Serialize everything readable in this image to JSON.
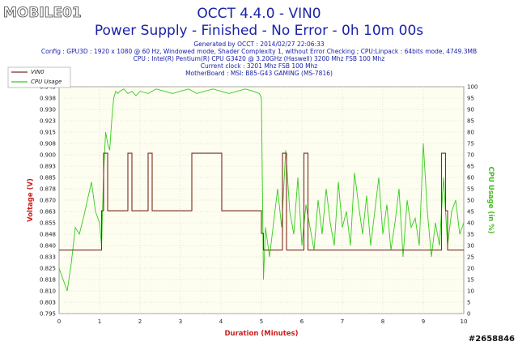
{
  "watermark": {
    "logo_text": "MOBILE01",
    "id_text": "#2658846"
  },
  "header": {
    "title": "OCCT 4.4.0 - VIN0",
    "subtitle": "Power Supply - Finished - No Error - 0h 10m 00s",
    "info_lines": [
      "Generated by OCCT : 2014/02/27 22:06:33",
      "Config : GPU3D : 1920 x 1080 @ 60 Hz, Windowed mode, Shader Complexity 1, without Error Checking ; CPU:Linpack : 64bits mode, 4749.3MB",
      "CPU : Intel(R) Pentium(R) CPU G3420 @ 3.20GHz (Haswell) 3200 Mhz FSB 100 Mhz",
      "Current clock : 3201 Mhz FSB 100 Mhz",
      "MotherBoard : MSI: B85-G43 GAMING (MS-7816)"
    ]
  },
  "colors": {
    "voltage_line": "#7b2e22",
    "cpu_line": "#33cc1a",
    "plot_bg": "#fdfdf0",
    "title": "#1a22a8",
    "axis_label": "#cc2020",
    "right_axis_label": "#44bb22",
    "grid": "#cccccc"
  },
  "chart_data": {
    "type": "line",
    "xlabel": "Duration (Minutes)",
    "ylabel": "Voltage (V)",
    "y2label": "CPU Usage (in %)",
    "xlim": [
      0,
      10
    ],
    "ylim": [
      0.795,
      0.945
    ],
    "y2lim": [
      0,
      100
    ],
    "x_ticks": [
      "0",
      "1",
      "2",
      "3",
      "4",
      "5",
      "6",
      "7",
      "8",
      "9",
      "10"
    ],
    "y_ticks": [
      "0.795",
      "0.803",
      "0.810",
      "0.818",
      "0.825",
      "0.833",
      "0.840",
      "0.848",
      "0.855",
      "0.863",
      "0.870",
      "0.878",
      "0.885",
      "0.893",
      "0.900",
      "0.908",
      "0.915",
      "0.923",
      "0.930",
      "0.938",
      "0.945"
    ],
    "y2_ticks": [
      "0",
      "5",
      "10",
      "15",
      "20",
      "25",
      "30",
      "35",
      "40",
      "45",
      "50",
      "55",
      "60",
      "65",
      "70",
      "75",
      "80",
      "85",
      "90",
      "95",
      "100"
    ],
    "grid": true,
    "legend": {
      "placement": "top-left",
      "entries": [
        "VIN0",
        "CPU Usage"
      ]
    },
    "series": [
      {
        "name": "VIN0",
        "axis": "left",
        "x": [
          0,
          1.05,
          1.05,
          1.1,
          1.1,
          1.2,
          1.2,
          1.7,
          1.7,
          1.8,
          1.8,
          2.2,
          2.2,
          2.3,
          2.3,
          3.28,
          3.28,
          4.02,
          4.02,
          5.0,
          5.0,
          5.05,
          5.05,
          5.52,
          5.52,
          5.62,
          5.62,
          6.05,
          6.05,
          6.15,
          6.15,
          9.45,
          9.45,
          9.55,
          9.55,
          9.6,
          9.6,
          10
        ],
        "y": [
          0.837,
          0.837,
          0.863,
          0.863,
          0.901,
          0.901,
          0.863,
          0.863,
          0.901,
          0.901,
          0.863,
          0.863,
          0.901,
          0.901,
          0.863,
          0.863,
          0.901,
          0.901,
          0.863,
          0.863,
          0.848,
          0.848,
          0.837,
          0.837,
          0.901,
          0.901,
          0.837,
          0.837,
          0.901,
          0.901,
          0.837,
          0.837,
          0.901,
          0.901,
          0.863,
          0.863,
          0.837,
          0.837
        ]
      },
      {
        "name": "CPU Usage",
        "axis": "right",
        "x": [
          0,
          0.1,
          0.2,
          0.3,
          0.4,
          0.5,
          0.6,
          0.7,
          0.8,
          0.9,
          1.0,
          1.05,
          1.1,
          1.15,
          1.2,
          1.25,
          1.3,
          1.35,
          1.4,
          1.45,
          1.5,
          1.6,
          1.7,
          1.8,
          1.9,
          2.0,
          2.2,
          2.4,
          2.6,
          2.8,
          3.0,
          3.2,
          3.4,
          3.6,
          3.8,
          4.0,
          4.2,
          4.4,
          4.6,
          4.8,
          4.95,
          5.0,
          5.05,
          5.1,
          5.2,
          5.3,
          5.4,
          5.5,
          5.6,
          5.7,
          5.8,
          5.9,
          6.0,
          6.1,
          6.2,
          6.3,
          6.4,
          6.5,
          6.6,
          6.7,
          6.8,
          6.9,
          7.0,
          7.1,
          7.2,
          7.3,
          7.4,
          7.5,
          7.6,
          7.7,
          7.8,
          7.9,
          8.0,
          8.1,
          8.2,
          8.3,
          8.4,
          8.5,
          8.6,
          8.7,
          8.8,
          8.9,
          9.0,
          9.1,
          9.2,
          9.3,
          9.4,
          9.5,
          9.6,
          9.7,
          9.8,
          9.9,
          10.0
        ],
        "y": [
          20,
          15,
          10,
          22,
          38,
          35,
          42,
          50,
          58,
          45,
          40,
          30,
          62,
          80,
          75,
          72,
          85,
          95,
          98,
          97,
          98,
          99,
          97,
          98,
          96,
          98,
          97,
          99,
          98,
          97,
          98,
          99,
          97,
          98,
          99,
          98,
          97,
          98,
          99,
          98,
          97,
          95,
          15,
          38,
          25,
          40,
          55,
          38,
          72,
          45,
          35,
          60,
          30,
          48,
          38,
          28,
          50,
          35,
          55,
          40,
          30,
          58,
          38,
          45,
          30,
          62,
          48,
          35,
          52,
          30,
          45,
          60,
          35,
          48,
          28,
          40,
          55,
          25,
          50,
          38,
          42,
          30,
          75,
          45,
          25,
          40,
          30,
          60,
          30,
          45,
          50,
          35,
          40
        ]
      }
    ]
  }
}
